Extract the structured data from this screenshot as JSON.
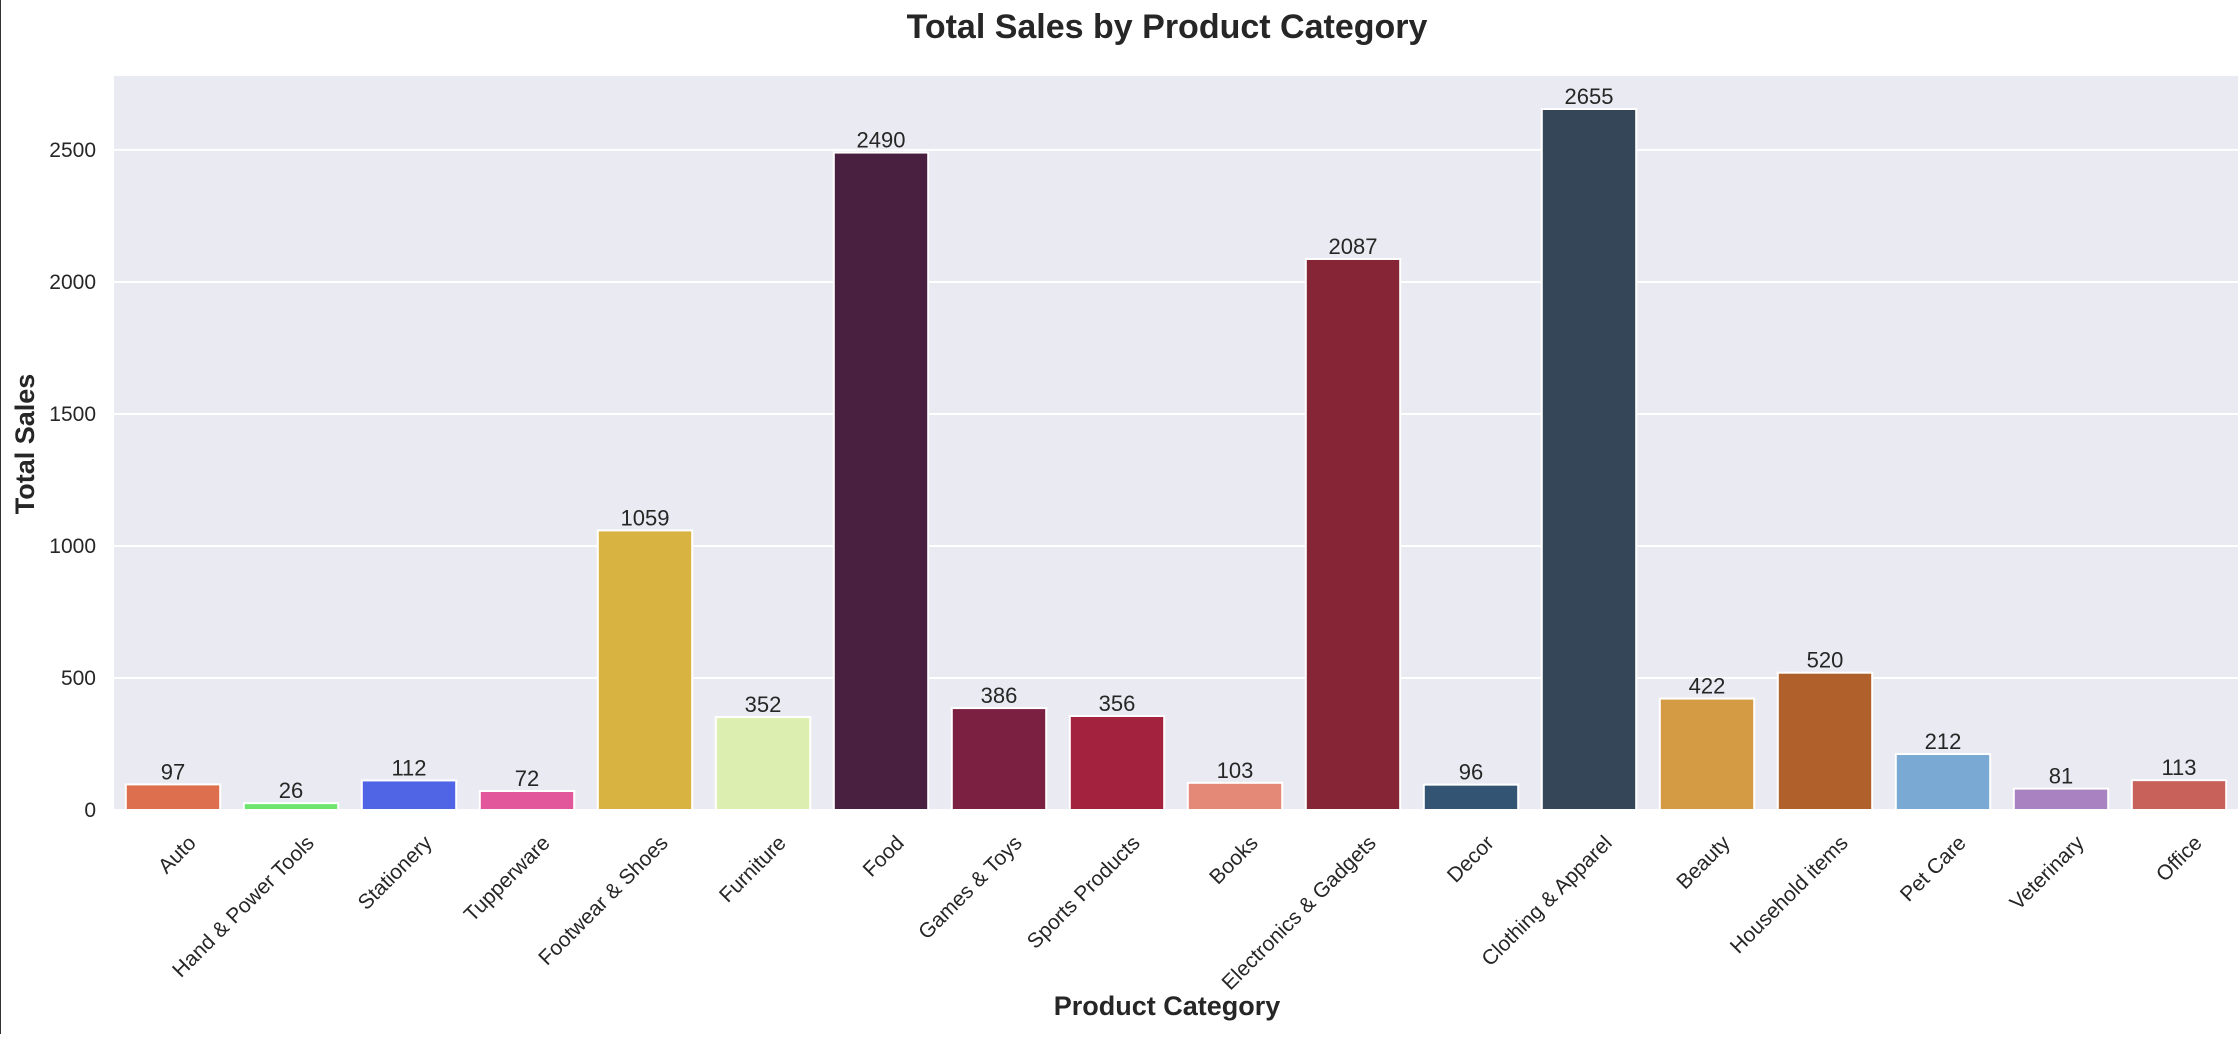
{
  "chart_data": {
    "type": "bar",
    "title": "Total Sales by Product Category",
    "xlabel": "Product Category",
    "ylabel": "Total Sales",
    "ylim": [
      0,
      2780
    ],
    "yticks": [
      0,
      500,
      1000,
      1500,
      2000,
      2500
    ],
    "grid": true,
    "background": "#eaeaf2",
    "categories": [
      "Auto",
      "Hand & Power Tools",
      "Stationery",
      "Tupperware",
      "Footwear & Shoes",
      "Furniture",
      "Food",
      "Games & Toys",
      "Sports Products",
      "Books",
      "Electronics & Gadgets",
      "Decor",
      "Clothing & Apparel",
      "Beauty",
      "Household items",
      "Pet Care",
      "Veterinary",
      "Office"
    ],
    "values": [
      97,
      26,
      112,
      72,
      1059,
      352,
      2490,
      386,
      356,
      103,
      2087,
      96,
      2655,
      422,
      520,
      212,
      81,
      113
    ],
    "colors": [
      "#dd6e4e",
      "#6ee66e",
      "#5065e6",
      "#e2579b",
      "#d9b341",
      "#dcefb0",
      "#4a2040",
      "#7b2040",
      "#a3233f",
      "#e48878",
      "#862536",
      "#345474",
      "#354658",
      "#d49a44",
      "#b0602a",
      "#7aaad3",
      "#a982c2",
      "#c8615a"
    ]
  }
}
